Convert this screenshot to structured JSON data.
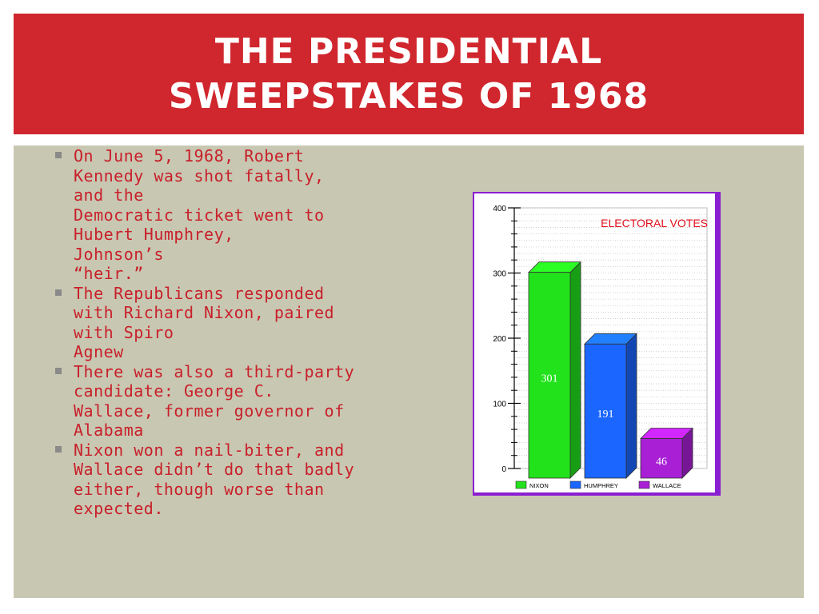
{
  "slide": {
    "title_lines": [
      "THE PRESIDENTIAL",
      "SWEEPSTAKES OF 1968"
    ]
  },
  "bullets": [
    {
      "lines": [
        "On June 5, 1968, Robert",
        "Kennedy was shot fatally,",
        "and the",
        "Democratic ticket went to",
        "Hubert Humphrey,",
        "Johnson’s",
        "“heir.”"
      ]
    },
    {
      "lines": [
        "The Republicans responded",
        "with Richard Nixon, paired",
        "with Spiro",
        "Agnew"
      ]
    },
    {
      "lines": [
        "There was also a third-party",
        "candidate: George C.",
        "Wallace, former governor of",
        "Alabama"
      ]
    },
    {
      "lines": [
        "Nixon won a nail-biter, and",
        "Wallace didn’t do that badly",
        "either, though worse than",
        "expected."
      ]
    }
  ],
  "colors": {
    "title_band": "#d0262d",
    "content_bg": "#c8c7b2",
    "bullet_text": "#c8202a",
    "chart_border": "#8a1fd1"
  },
  "chart_data": {
    "type": "bar",
    "title": "ELECTORAL VOTES",
    "categories": [
      "NIXON",
      "HUMPHREY",
      "WALLACE"
    ],
    "values": [
      301,
      191,
      46
    ],
    "data_labels": [
      "301",
      "191",
      "46"
    ],
    "colors": [
      "#22e21c",
      "#1a66ff",
      "#a81fd6"
    ],
    "yticks": [
      0,
      100,
      200,
      300,
      400
    ],
    "ylim": [
      0,
      400
    ],
    "grid": true,
    "legend": "bottom",
    "bar_style": "3d"
  }
}
